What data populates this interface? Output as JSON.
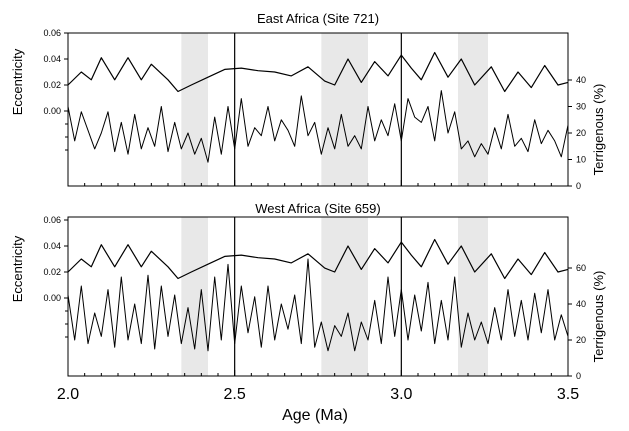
{
  "chart_data": [
    {
      "type": "line",
      "title": "East Africa (Site 721)",
      "xlabel": "Age (Ma)",
      "ylabel_left": "Eccentricity",
      "ylabel_right": "Terrigenous (%)",
      "xlim": [
        2.0,
        3.5
      ],
      "ylim_left": [
        0.0,
        0.06
      ],
      "ylim_right": [
        0,
        40
      ],
      "left_ticks": [
        "0.00",
        "0.02",
        "0.04",
        "0.06"
      ],
      "right_ticks": [
        "0",
        "10",
        "20",
        "30",
        "40"
      ],
      "grey_bands": [
        [
          2.34,
          2.42
        ],
        [
          2.76,
          2.9
        ],
        [
          3.17,
          3.26
        ]
      ],
      "vertical_lines": [
        2.5,
        3.0
      ],
      "series": [
        {
          "name": "Eccentricity",
          "axis": "left",
          "x": [
            2.0,
            2.04,
            2.07,
            2.1,
            2.14,
            2.18,
            2.22,
            2.25,
            2.3,
            2.33,
            2.37,
            2.42,
            2.47,
            2.52,
            2.57,
            2.62,
            2.67,
            2.72,
            2.77,
            2.8,
            2.84,
            2.88,
            2.92,
            2.96,
            3.0,
            3.03,
            3.06,
            3.1,
            3.14,
            3.18,
            3.22,
            3.27,
            3.31,
            3.35,
            3.39,
            3.43,
            3.47,
            3.5
          ],
          "values": [
            0.02,
            0.03,
            0.024,
            0.041,
            0.024,
            0.041,
            0.024,
            0.036,
            0.024,
            0.015,
            0.02,
            0.026,
            0.032,
            0.033,
            0.031,
            0.03,
            0.027,
            0.034,
            0.023,
            0.02,
            0.04,
            0.022,
            0.038,
            0.027,
            0.043,
            0.033,
            0.024,
            0.045,
            0.026,
            0.04,
            0.02,
            0.034,
            0.015,
            0.03,
            0.018,
            0.035,
            0.02,
            0.022
          ]
        },
        {
          "name": "Terrigenous",
          "axis": "right",
          "x": [
            2.0,
            2.02,
            2.04,
            2.06,
            2.08,
            2.1,
            2.12,
            2.14,
            2.16,
            2.18,
            2.2,
            2.22,
            2.24,
            2.26,
            2.28,
            2.3,
            2.32,
            2.34,
            2.36,
            2.38,
            2.4,
            2.42,
            2.44,
            2.46,
            2.48,
            2.5,
            2.52,
            2.54,
            2.56,
            2.58,
            2.6,
            2.62,
            2.64,
            2.66,
            2.68,
            2.7,
            2.72,
            2.74,
            2.76,
            2.78,
            2.8,
            2.82,
            2.84,
            2.86,
            2.88,
            2.9,
            2.92,
            2.94,
            2.96,
            2.98,
            3.0,
            3.02,
            3.04,
            3.06,
            3.08,
            3.1,
            3.12,
            3.14,
            3.16,
            3.18,
            3.2,
            3.22,
            3.24,
            3.26,
            3.28,
            3.3,
            3.32,
            3.34,
            3.36,
            3.38,
            3.4,
            3.42,
            3.44,
            3.46,
            3.48,
            3.5
          ],
          "values": [
            30,
            17,
            28,
            21,
            14,
            20,
            28,
            13,
            24,
            12,
            27,
            14,
            22,
            15,
            30,
            13,
            24,
            14,
            20,
            12,
            18,
            9,
            26,
            12,
            30,
            14,
            33,
            15,
            22,
            19,
            30,
            17,
            25,
            21,
            15,
            34,
            19,
            24,
            12,
            22,
            14,
            27,
            15,
            19,
            14,
            30,
            17,
            25,
            19,
            31,
            17,
            33,
            26,
            24,
            30,
            17,
            36,
            20,
            28,
            14,
            17,
            11,
            16,
            12,
            22,
            14,
            27,
            15,
            18,
            13,
            25,
            16,
            21,
            17,
            11,
            23
          ]
        }
      ]
    },
    {
      "type": "line",
      "title": "West Africa (Site 659)",
      "xlabel": "Age (Ma)",
      "ylabel_left": "Eccentricity",
      "ylabel_right": "Terrigenous (%)",
      "xlim": [
        2.0,
        3.5
      ],
      "ylim_left": [
        0.0,
        0.06
      ],
      "ylim_right": [
        0,
        60
      ],
      "left_ticks": [
        "0.00",
        "0.02",
        "0.04",
        "0.06"
      ],
      "right_ticks": [
        "0",
        "20",
        "40",
        "60"
      ],
      "grey_bands": [
        [
          2.34,
          2.42
        ],
        [
          2.76,
          2.9
        ],
        [
          3.17,
          3.26
        ]
      ],
      "vertical_lines": [
        2.5,
        3.0
      ],
      "series": [
        {
          "name": "Eccentricity",
          "axis": "left",
          "x": [
            2.0,
            2.04,
            2.07,
            2.1,
            2.14,
            2.18,
            2.22,
            2.25,
            2.3,
            2.33,
            2.37,
            2.42,
            2.47,
            2.52,
            2.57,
            2.62,
            2.67,
            2.72,
            2.77,
            2.8,
            2.84,
            2.88,
            2.92,
            2.96,
            3.0,
            3.03,
            3.06,
            3.1,
            3.14,
            3.18,
            3.22,
            3.27,
            3.31,
            3.35,
            3.39,
            3.43,
            3.47,
            3.5
          ],
          "values": [
            0.02,
            0.03,
            0.024,
            0.041,
            0.024,
            0.041,
            0.024,
            0.036,
            0.024,
            0.015,
            0.02,
            0.026,
            0.032,
            0.033,
            0.031,
            0.03,
            0.027,
            0.034,
            0.023,
            0.02,
            0.04,
            0.022,
            0.038,
            0.027,
            0.043,
            0.033,
            0.024,
            0.045,
            0.026,
            0.04,
            0.02,
            0.034,
            0.015,
            0.03,
            0.018,
            0.035,
            0.02,
            0.022
          ]
        },
        {
          "name": "Terrigenous",
          "axis": "right",
          "x": [
            2.0,
            2.02,
            2.04,
            2.06,
            2.08,
            2.1,
            2.12,
            2.14,
            2.16,
            2.18,
            2.2,
            2.22,
            2.24,
            2.26,
            2.28,
            2.3,
            2.32,
            2.34,
            2.36,
            2.38,
            2.4,
            2.42,
            2.44,
            2.46,
            2.48,
            2.5,
            2.52,
            2.54,
            2.56,
            2.58,
            2.6,
            2.62,
            2.64,
            2.66,
            2.68,
            2.7,
            2.72,
            2.74,
            2.76,
            2.78,
            2.8,
            2.82,
            2.84,
            2.86,
            2.88,
            2.9,
            2.92,
            2.94,
            2.96,
            2.98,
            3.0,
            3.02,
            3.04,
            3.06,
            3.08,
            3.1,
            3.12,
            3.14,
            3.16,
            3.18,
            3.2,
            3.22,
            3.24,
            3.26,
            3.28,
            3.3,
            3.32,
            3.34,
            3.36,
            3.38,
            3.4,
            3.42,
            3.44,
            3.46,
            3.48,
            3.5
          ],
          "values": [
            45,
            20,
            50,
            18,
            35,
            22,
            48,
            16,
            55,
            20,
            40,
            18,
            56,
            15,
            50,
            22,
            45,
            18,
            38,
            15,
            48,
            14,
            55,
            20,
            62,
            18,
            50,
            24,
            44,
            16,
            50,
            20,
            40,
            26,
            45,
            18,
            65,
            16,
            30,
            14,
            28,
            22,
            35,
            14,
            30,
            20,
            42,
            18,
            55,
            22,
            48,
            20,
            45,
            25,
            52,
            18,
            42,
            20,
            55,
            16,
            35,
            20,
            30,
            18,
            38,
            20,
            48,
            22,
            42,
            20,
            46,
            24,
            48,
            20,
            34,
            22
          ]
        }
      ]
    }
  ]
}
